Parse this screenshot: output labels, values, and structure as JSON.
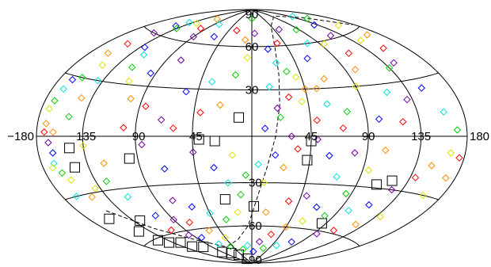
{
  "chart_data": {
    "type": "scatter",
    "projection": "hammer-aitoff",
    "title": "",
    "xlabel": "",
    "ylabel": "",
    "grid": true,
    "xlim": [
      -180,
      180
    ],
    "ylim": [
      -90,
      90
    ],
    "meridians": [
      -180,
      -135,
      -90,
      -45,
      0,
      45,
      90,
      135,
      180
    ],
    "parallels": [
      -60,
      -30,
      0,
      30,
      60
    ],
    "tick_labels": {
      "lon": [
        {
          "value": -180,
          "text": "−180"
        },
        {
          "value": -135,
          "text": "−135"
        },
        {
          "value": -90,
          "text": "−90"
        },
        {
          "value": -45,
          "text": "−45"
        },
        {
          "value": 45,
          "text": "45"
        },
        {
          "value": 90,
          "text": "90"
        },
        {
          "value": 135,
          "text": "135"
        },
        {
          "value": 180,
          "text": "180"
        }
      ],
      "lat": [
        {
          "value": 90,
          "text": "90"
        },
        {
          "value": 60,
          "text": "60"
        },
        {
          "value": 30,
          "text": "30"
        },
        {
          "value": -30,
          "text": "−30"
        },
        {
          "value": -60,
          "text": "−60"
        },
        {
          "value": -90,
          "text": "−90"
        }
      ]
    },
    "dashed_curve": [
      [
        -150,
        -40
      ],
      [
        -125,
        -55
      ],
      [
        -95,
        -67
      ],
      [
        -60,
        -75
      ],
      [
        -25,
        -70
      ],
      [
        -5,
        -60
      ],
      [
        5,
        -40
      ],
      [
        12,
        -20
      ],
      [
        18,
        0
      ],
      [
        22,
        20
      ],
      [
        25,
        40
      ],
      [
        30,
        60
      ],
      [
        45,
        75
      ],
      [
        100,
        82
      ],
      [
        150,
        75
      ],
      [
        178,
        62
      ]
    ],
    "series": [
      {
        "marker": "square",
        "color": "#000000",
        "points": [
          [
            -148,
            -16
          ],
          [
            -158,
            -44
          ],
          [
            -148,
            -54
          ],
          [
            -147,
            -61
          ],
          [
            -140,
            -64
          ],
          [
            -125,
            -66
          ],
          [
            -122,
            -70
          ],
          [
            -105,
            -72
          ],
          [
            -90,
            -78
          ],
          [
            -72,
            -80
          ],
          [
            -55,
            -82
          ],
          [
            -38,
            -86
          ],
          [
            -97,
            -13
          ],
          [
            -40,
            -2
          ],
          [
            -28,
            -3
          ],
          [
            -10,
            12
          ],
          [
            45,
            -3
          ],
          [
            43,
            -15
          ],
          [
            108,
            -28
          ],
          [
            120,
            -25
          ],
          [
            85,
            -55
          ],
          [
            -25,
            -41
          ],
          [
            2,
            -46
          ],
          [
            -148,
            -6
          ],
          [
            -128,
            -49
          ]
        ]
      },
      {
        "marker": "diamond",
        "colors": [
          "#0000ff",
          "#00e0e0",
          "#00cc00",
          "#e0e000",
          "#ff8c00",
          "#ff0000",
          "#7000a0"
        ],
        "points": [
          [
            -166,
            28
          ],
          [
            -168,
            23
          ],
          [
            -170,
            17
          ],
          [
            -172,
            13
          ],
          [
            -171,
            6
          ],
          [
            -172,
            2
          ],
          [
            -168,
            -3
          ],
          [
            -165,
            -8
          ],
          [
            -167,
            -13
          ],
          [
            -163,
            -18
          ],
          [
            -158,
            -22
          ],
          [
            -160,
            44
          ],
          [
            -155,
            51
          ],
          [
            -150,
            60
          ],
          [
            -145,
            67
          ],
          [
            -140,
            71
          ],
          [
            -135,
            66
          ],
          [
            -125,
            72
          ],
          [
            -110,
            78
          ],
          [
            -100,
            70
          ],
          [
            -90,
            64
          ],
          [
            -130,
            52
          ],
          [
            -120,
            48
          ],
          [
            -118,
            40
          ],
          [
            -110,
            32
          ],
          [
            -100,
            22
          ],
          [
            -85,
            18
          ],
          [
            -70,
            10
          ],
          [
            -55,
            28
          ],
          [
            -35,
            35
          ],
          [
            -15,
            40
          ],
          [
            -5,
            52
          ],
          [
            -10,
            65
          ],
          [
            -30,
            72
          ],
          [
            5,
            70
          ],
          [
            20,
            58
          ],
          [
            25,
            48
          ],
          [
            33,
            42
          ],
          [
            40,
            38
          ],
          [
            45,
            30
          ],
          [
            30,
            25
          ],
          [
            20,
            18
          ],
          [
            10,
            5
          ],
          [
            60,
            20
          ],
          [
            75,
            15
          ],
          [
            90,
            30
          ],
          [
            100,
            40
          ],
          [
            110,
            50
          ],
          [
            120,
            62
          ],
          [
            130,
            70
          ],
          [
            140,
            78
          ],
          [
            150,
            74
          ],
          [
            160,
            65
          ],
          [
            165,
            56
          ],
          [
            155,
            48
          ],
          [
            145,
            40
          ],
          [
            150,
            25
          ],
          [
            160,
            12
          ],
          [
            170,
            3
          ],
          [
            165,
            -8
          ],
          [
            150,
            -15
          ],
          [
            140,
            -22
          ],
          [
            125,
            -30
          ],
          [
            115,
            -40
          ],
          [
            100,
            -45
          ],
          [
            80,
            -50
          ],
          [
            60,
            -55
          ],
          [
            45,
            -60
          ],
          [
            30,
            -66
          ],
          [
            15,
            -72
          ],
          [
            5,
            -80
          ],
          [
            -10,
            -75
          ],
          [
            -25,
            -78
          ],
          [
            -45,
            -68
          ],
          [
            -60,
            -62
          ],
          [
            -75,
            -55
          ],
          [
            -90,
            -52
          ],
          [
            -105,
            -48
          ],
          [
            -115,
            -35
          ],
          [
            -125,
            -25
          ],
          [
            -140,
            -28
          ],
          [
            -150,
            -32
          ],
          [
            -60,
            5
          ],
          [
            -45,
            -10
          ],
          [
            -30,
            -20
          ],
          [
            -20,
            -30
          ],
          [
            -10,
            -38
          ],
          [
            10,
            -30
          ],
          [
            25,
            -20
          ],
          [
            35,
            -8
          ],
          [
            50,
            -2
          ],
          [
            60,
            -12
          ],
          [
            70,
            -25
          ],
          [
            85,
            -35
          ],
          [
            95,
            -20
          ],
          [
            105,
            -8
          ],
          [
            120,
            8
          ],
          [
            130,
            20
          ],
          [
            60,
            50
          ],
          [
            75,
            60
          ],
          [
            85,
            70
          ],
          [
            95,
            58
          ],
          [
            65,
            36
          ],
          [
            50,
            10
          ],
          [
            30,
            0
          ],
          [
            18,
            -12
          ],
          [
            5,
            -18
          ],
          [
            -5,
            -25
          ],
          [
            -15,
            -12
          ],
          [
            -25,
            20
          ],
          [
            -40,
            15
          ],
          [
            -75,
            48
          ],
          [
            -95,
            38
          ],
          [
            -140,
            30
          ],
          [
            -150,
            10
          ],
          [
            -135,
            -5
          ],
          [
            -120,
            -15
          ],
          [
            -108,
            -58
          ],
          [
            -95,
            -63
          ],
          [
            -82,
            -66
          ],
          [
            -68,
            -72
          ],
          [
            -50,
            -75
          ],
          [
            140,
            -45
          ],
          [
            125,
            -52
          ],
          [
            110,
            -58
          ],
          [
            95,
            -62
          ],
          [
            75,
            -70
          ],
          [
            55,
            -74
          ],
          [
            30,
            -77
          ],
          [
            160,
            -30
          ],
          [
            170,
            -20
          ],
          [
            175,
            -10
          ],
          [
            -75,
            -40
          ],
          [
            -60,
            -45
          ],
          [
            -45,
            -50
          ],
          [
            -30,
            -55
          ],
          [
            -15,
            -50
          ],
          [
            15,
            -50
          ],
          [
            35,
            -42
          ],
          [
            50,
            -38
          ],
          [
            65,
            -45
          ],
          [
            -165,
            -30
          ],
          [
            -158,
            30
          ],
          [
            -150,
            38
          ],
          [
            -145,
            20
          ],
          [
            35,
            62
          ],
          [
            55,
            72
          ],
          [
            -60,
            66
          ],
          [
            -80,
            75
          ],
          [
            0,
            82
          ],
          [
            -170,
            -15
          ],
          [
            -163,
            2
          ],
          [
            -100,
            5
          ],
          [
            -85,
            -5
          ],
          [
            -70,
            -20
          ],
          [
            15,
            32
          ],
          [
            22,
            12
          ],
          [
            40,
            22
          ],
          [
            55,
            30
          ],
          [
            70,
            5
          ],
          [
            80,
            -10
          ],
          [
            100,
            10
          ],
          [
            115,
            25
          ],
          [
            135,
            38
          ],
          [
            145,
            55
          ]
        ]
      }
    ]
  }
}
